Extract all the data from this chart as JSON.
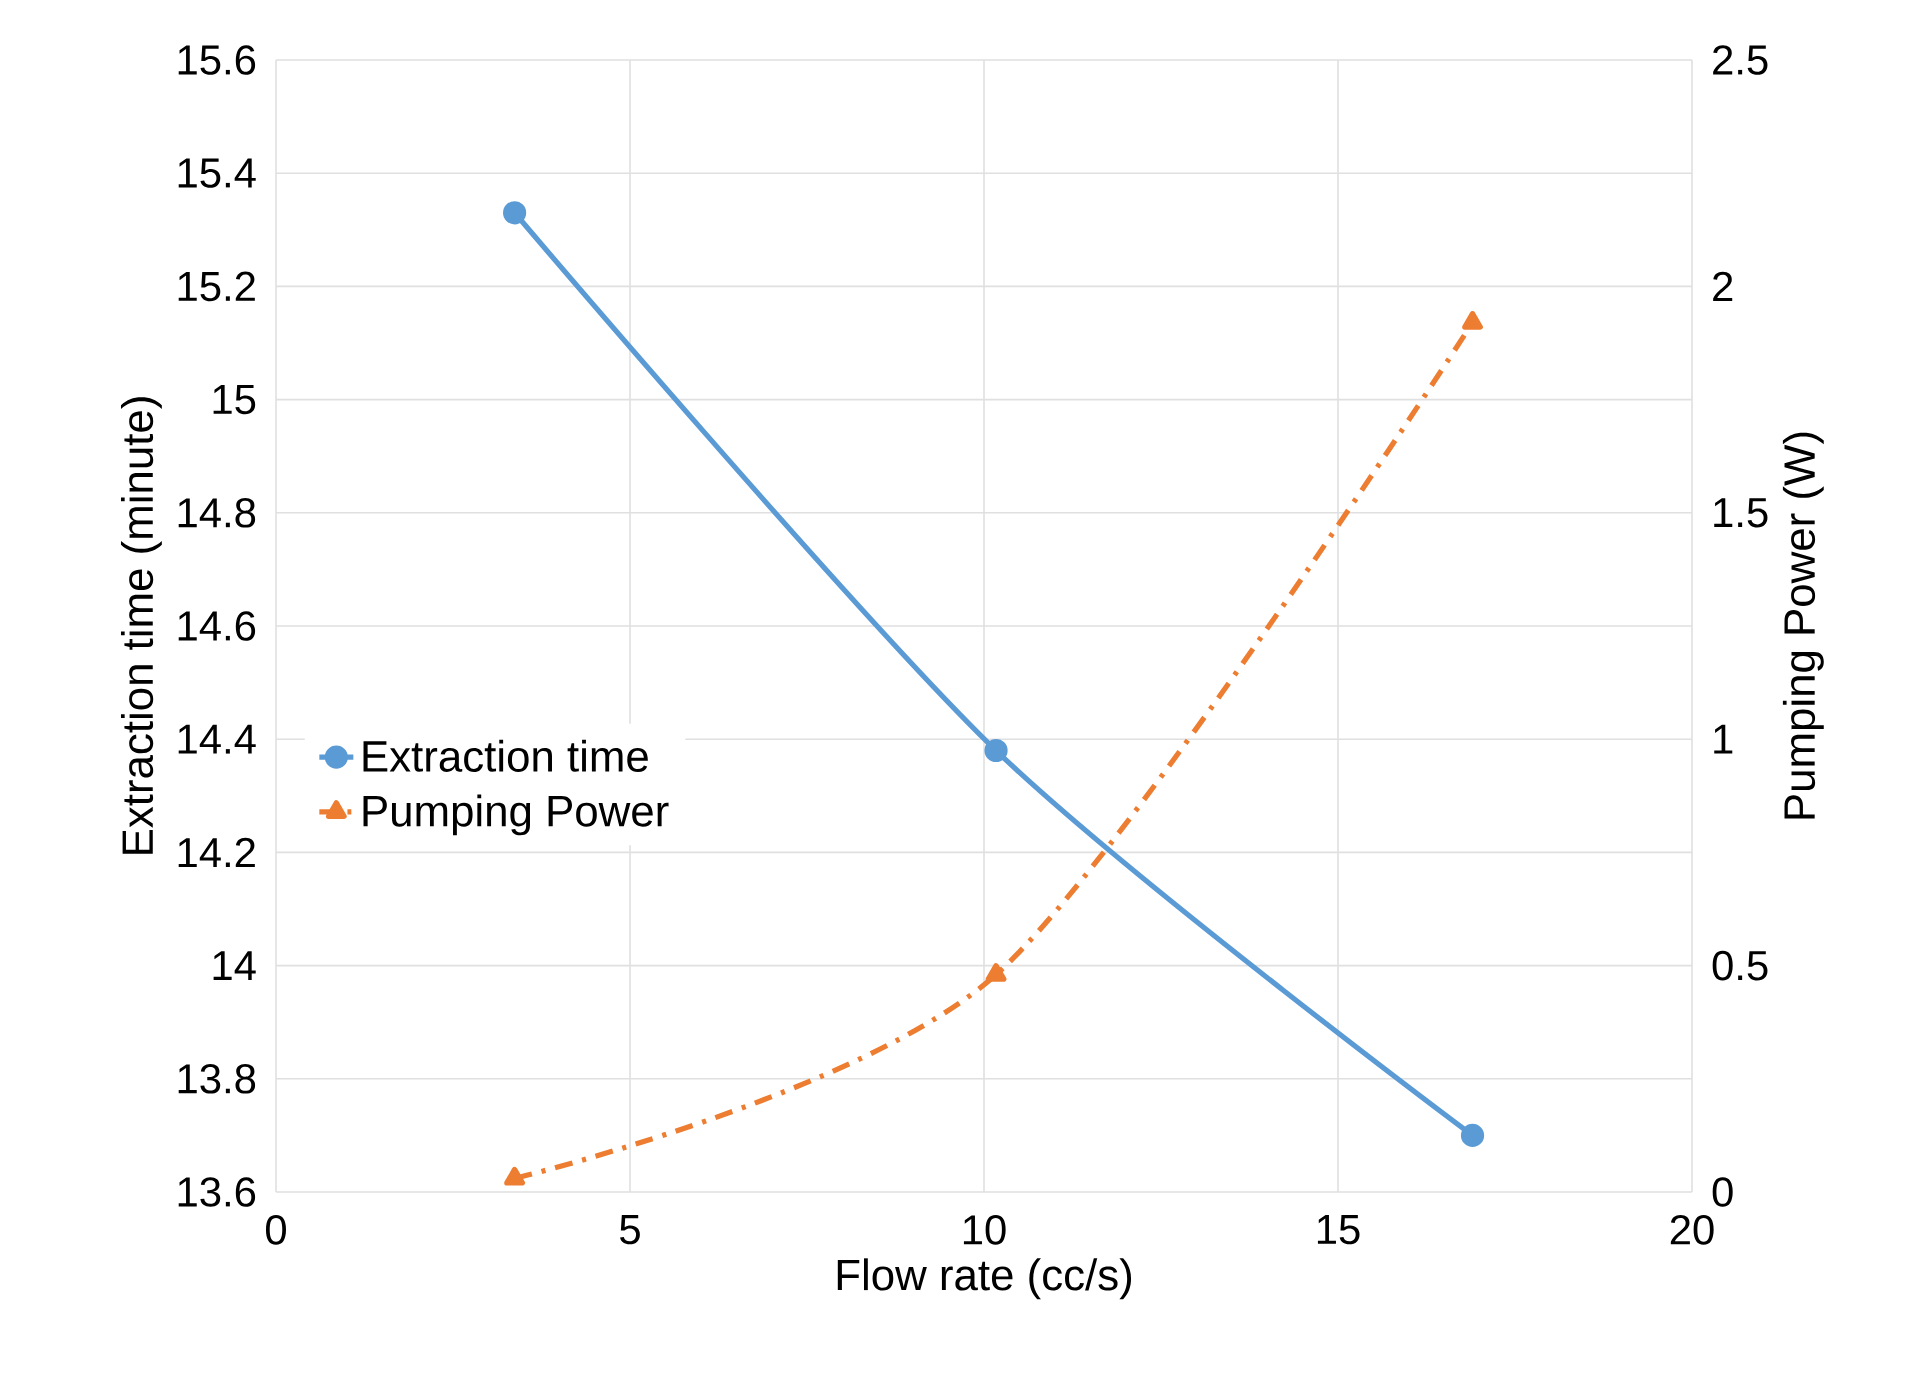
{
  "chart_data": {
    "type": "line",
    "xlabel": "Flow rate (cc/s)",
    "ylabel": "Extraction time (minute)",
    "y2label": "Pumping Power (W)",
    "series": [
      {
        "name": "Extraction time",
        "color": "#5b9bd5",
        "x": [
          3.37,
          10.17,
          16.9
        ],
        "values": [
          15.33,
          14.38,
          13.7
        ],
        "marker": "circle",
        "line_style": "solid"
      },
      {
        "name": "Pumping Power",
        "color": "#ed7d31",
        "x": [
          3.37,
          10.17,
          16.9
        ],
        "values": [
          0.03,
          0.48,
          1.92
        ],
        "marker": "triangle",
        "line_style": "dashed",
        "axis": "y2"
      }
    ],
    "xlim": [
      0,
      20
    ],
    "xticks": [
      0,
      5,
      10,
      15,
      20
    ],
    "ylim": [
      13.6,
      15.6
    ],
    "yticks": [
      13.6,
      13.8,
      14,
      14.2,
      14.4,
      14.6,
      14.8,
      15,
      15.2,
      15.4,
      15.6
    ],
    "y2lim": [
      0,
      2.5
    ],
    "y2ticks": [
      0,
      0.5,
      1,
      1.5,
      2,
      2.5
    ],
    "grid": true,
    "legend": "left"
  }
}
